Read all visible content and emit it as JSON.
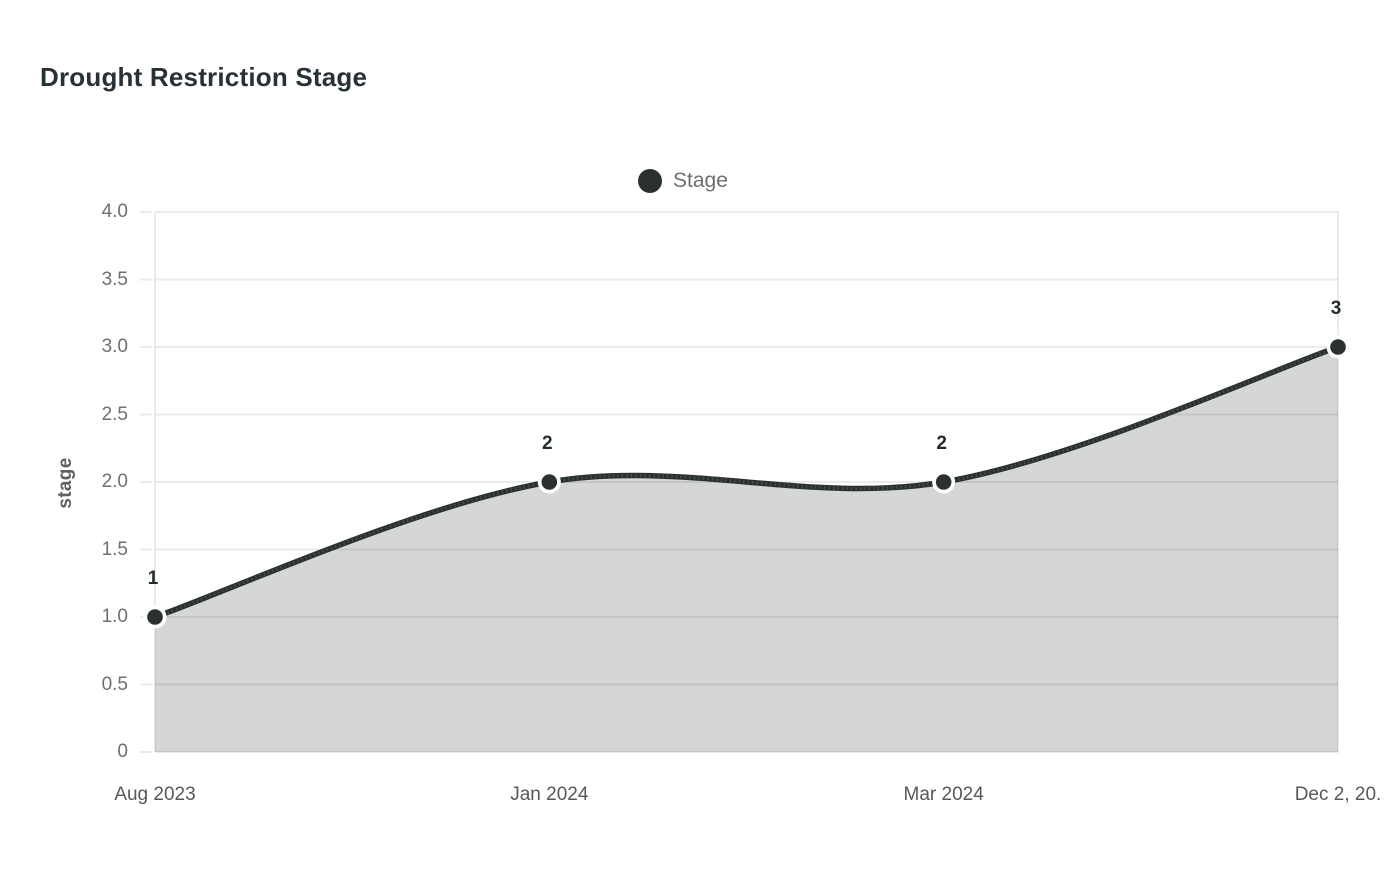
{
  "header": {
    "title": "Drought Restriction Stage"
  },
  "legend": {
    "label": "Stage"
  },
  "chart_data": {
    "type": "area",
    "title": "Drought Restriction Stage",
    "series_name": "Stage",
    "x": [
      "Aug 2023",
      "Jan 2024",
      "Mar 2024",
      "Dec 2, 20."
    ],
    "values": [
      1,
      2,
      2,
      3
    ],
    "point_labels": [
      "1",
      "2",
      "2",
      "3"
    ],
    "xlabel": "",
    "ylabel": "stage",
    "ylim": [
      0,
      4
    ],
    "y_ticks": [
      {
        "value": 0,
        "label": "0"
      },
      {
        "value": 0.5,
        "label": "0.5"
      },
      {
        "value": 1,
        "label": "1.0"
      },
      {
        "value": 1.5,
        "label": "1.5"
      },
      {
        "value": 2,
        "label": "2.0"
      },
      {
        "value": 2.5,
        "label": "2.5"
      },
      {
        "value": 3,
        "label": "3.0"
      },
      {
        "value": 3.5,
        "label": "3.5"
      },
      {
        "value": 4,
        "label": "4.0"
      }
    ],
    "grid": true,
    "curve": "smooth",
    "legend_position": "top-center",
    "colors": {
      "line": "#2a3130",
      "point": "#2a3130",
      "point_ring": "#ffffff",
      "fill": "#d5d7d6",
      "grid": "rgba(0,0,0,0.08)",
      "title_text": "#263238",
      "y_tick_text": "#6f6f6f",
      "x_tick_text": "#585858",
      "legend_text": "#6e6e6e",
      "axis_label_text": "#5c6063",
      "point_label_text": "#222b2e"
    }
  }
}
